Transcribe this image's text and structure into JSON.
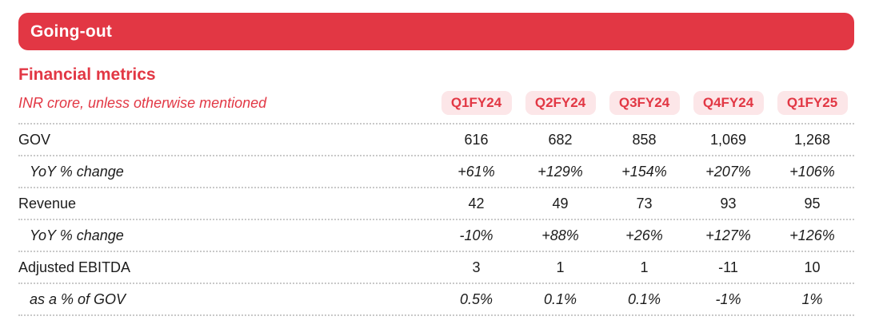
{
  "banner": {
    "title": "Going-out"
  },
  "section": {
    "title": "Financial metrics"
  },
  "table": {
    "note": "INR crore, unless otherwise mentioned",
    "columns": [
      "Q1FY24",
      "Q2FY24",
      "Q3FY24",
      "Q4FY24",
      "Q1FY25"
    ],
    "rows": [
      {
        "label": "GOV",
        "style": "normal",
        "values": [
          "616",
          "682",
          "858",
          "1,069",
          "1,268"
        ]
      },
      {
        "label": "YoY % change",
        "style": "italic",
        "values": [
          "+61%",
          "+129%",
          "+154%",
          "+207%",
          "+106%"
        ]
      },
      {
        "label": "Revenue",
        "style": "normal",
        "values": [
          "42",
          "49",
          "73",
          "93",
          "95"
        ]
      },
      {
        "label": "YoY % change",
        "style": "italic",
        "values": [
          "-10%",
          "+88%",
          "+26%",
          "+127%",
          "+126%"
        ]
      },
      {
        "label": "Adjusted EBITDA",
        "style": "normal",
        "values": [
          "3",
          "1",
          "1",
          "-11",
          "10"
        ]
      },
      {
        "label": "as a % of GOV",
        "style": "italic",
        "values": [
          "0.5%",
          "0.1%",
          "0.1%",
          "-1%",
          "1%"
        ]
      }
    ]
  },
  "colors": {
    "brand_red": "#E23744",
    "badge_bg": "#FCE6E8",
    "text_dark": "#1C1C1C",
    "divider": "#C9C9C9"
  }
}
